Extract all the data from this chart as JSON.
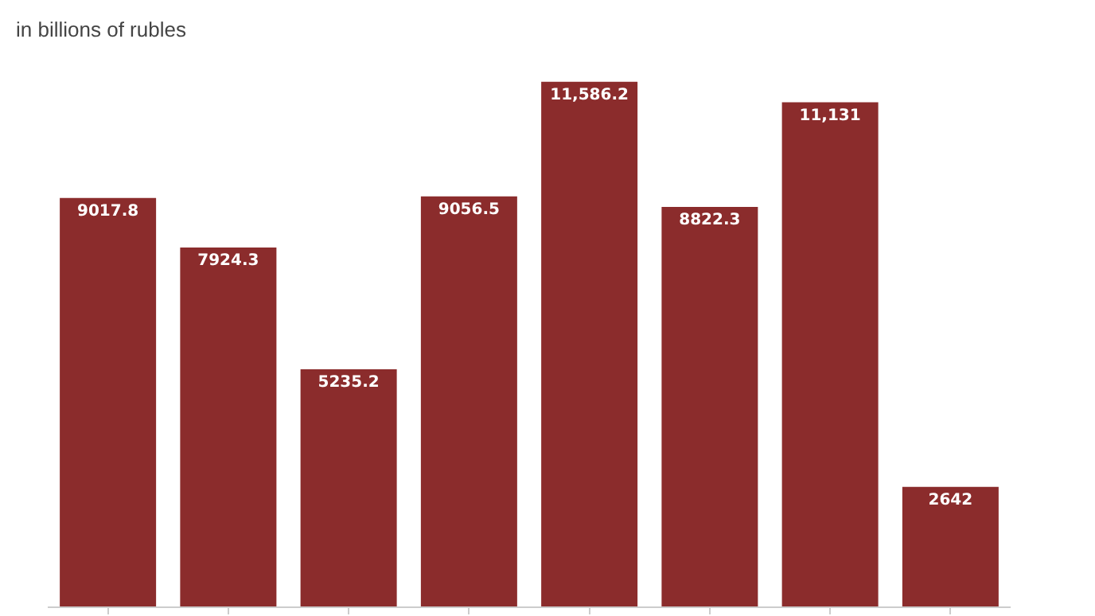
{
  "chart_data": {
    "type": "bar",
    "subtitle": "in billions of rubles",
    "categories": [
      null,
      null,
      null,
      null,
      null,
      null,
      null,
      null
    ],
    "values": [
      9017.8,
      7924.3,
      5235.2,
      9056.5,
      11586.2,
      8822.3,
      11131,
      2642
    ],
    "value_labels": [
      "9017.8",
      "7924.3",
      "5235.2",
      "9056.5",
      "11,586.2",
      "8822.3",
      "11,131",
      "2642"
    ],
    "color": "#8b2c2c"
  }
}
